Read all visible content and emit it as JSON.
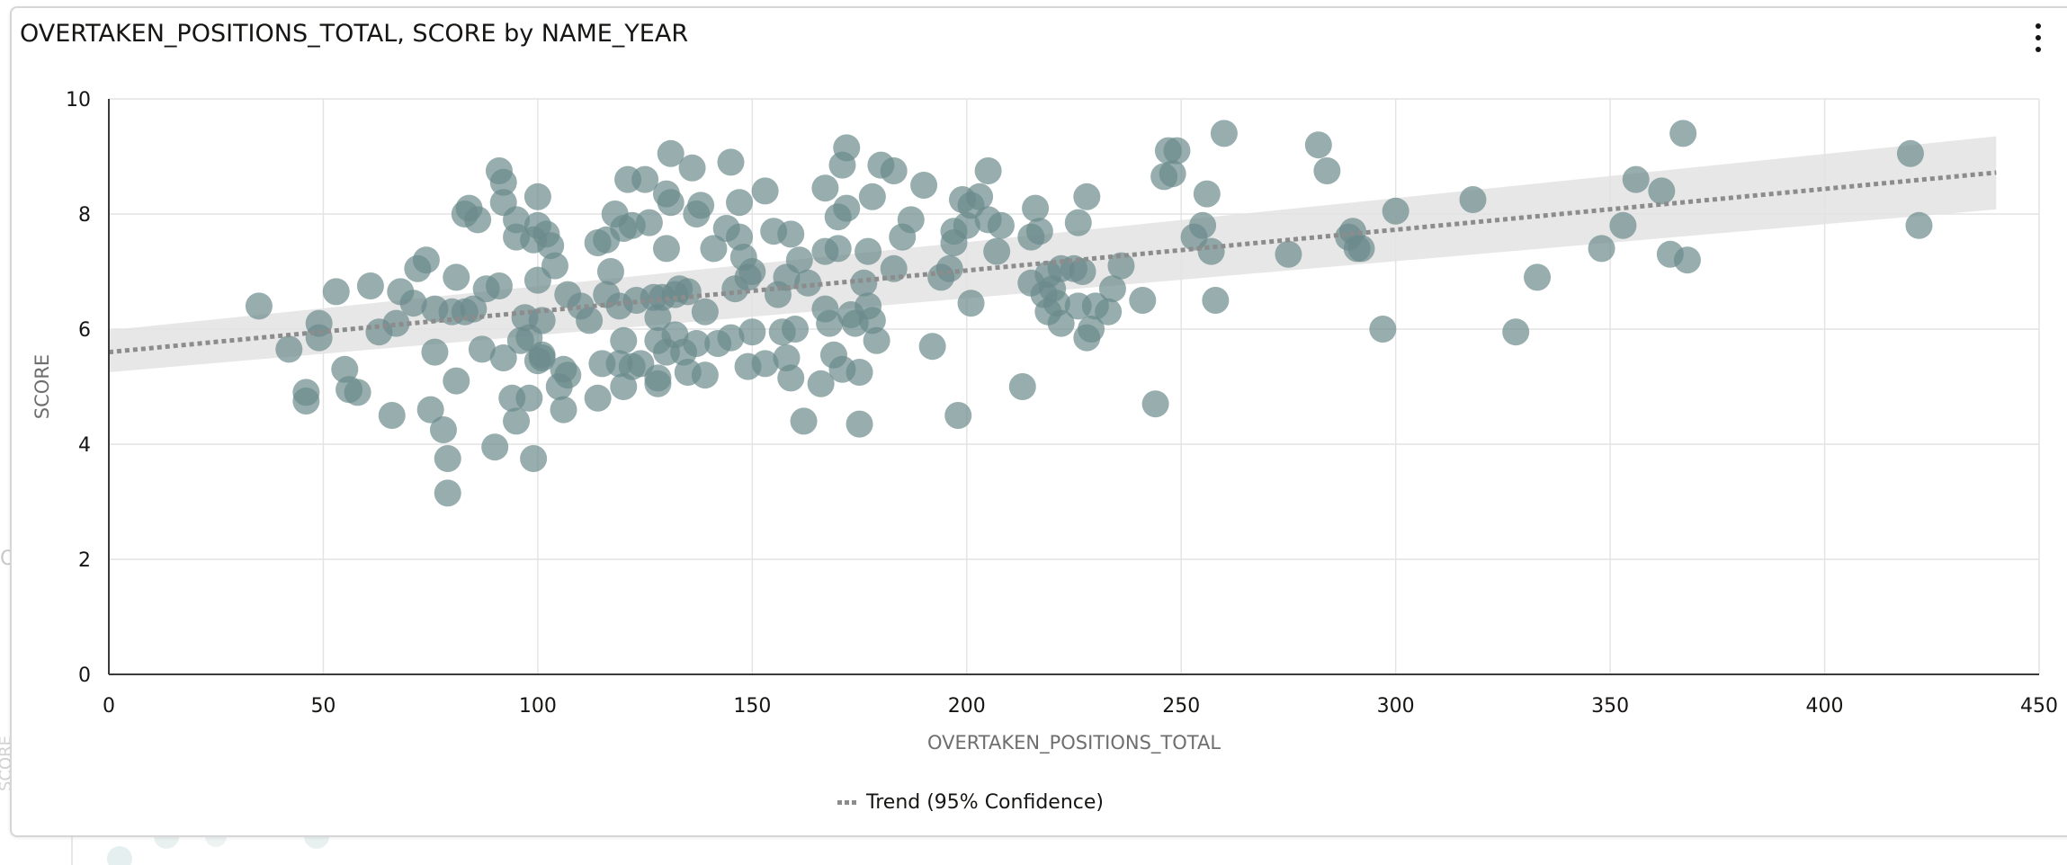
{
  "card": {
    "title": "OVERTAKEN_POSITIONS_TOTAL, SCORE by NAME_YEAR",
    "menu_icon": "more-vertical-icon"
  },
  "legend": {
    "trend_label": "Trend (95% Confidence)"
  },
  "colors": {
    "point": "#6b8a8c",
    "trend": "#8c8c8c",
    "band": "#e3e3e3",
    "grid": "#e4e4e4",
    "axis_label": "#6e6e6e"
  },
  "chart_data": {
    "type": "scatter",
    "title": "OVERTAKEN_POSITIONS_TOTAL, SCORE by NAME_YEAR",
    "xlabel": "OVERTAKEN_POSITIONS_TOTAL",
    "ylabel": "SCORE",
    "xlim": [
      0,
      450
    ],
    "ylim": [
      0,
      10
    ],
    "xticks": [
      0,
      50,
      100,
      150,
      200,
      250,
      300,
      350,
      400,
      450
    ],
    "yticks": [
      0,
      2,
      4,
      6,
      8,
      10
    ],
    "grid": true,
    "legend": "bottom-center",
    "trend": {
      "label": "Trend (95% Confidence)",
      "x": [
        0,
        440
      ],
      "y": [
        5.6,
        8.72
      ],
      "band_upper": [
        5.98,
        9.35
      ],
      "band_lower": [
        5.25,
        8.08
      ]
    },
    "points": [
      [
        35,
        6.4
      ],
      [
        42,
        5.65
      ],
      [
        46,
        4.9
      ],
      [
        46,
        4.75
      ],
      [
        49,
        6.1
      ],
      [
        49,
        5.85
      ],
      [
        53,
        6.65
      ],
      [
        55,
        5.3
      ],
      [
        56,
        4.95
      ],
      [
        58,
        4.9
      ],
      [
        61,
        6.75
      ],
      [
        63,
        5.95
      ],
      [
        66,
        4.5
      ],
      [
        67,
        6.1
      ],
      [
        68,
        6.65
      ],
      [
        71,
        6.45
      ],
      [
        72,
        7.05
      ],
      [
        74,
        7.2
      ],
      [
        75,
        4.6
      ],
      [
        76,
        6.35
      ],
      [
        76,
        5.6
      ],
      [
        78,
        4.25
      ],
      [
        79,
        3.75
      ],
      [
        79,
        3.15
      ],
      [
        80,
        6.3
      ],
      [
        81,
        5.1
      ],
      [
        81,
        6.9
      ],
      [
        83,
        6.3
      ],
      [
        83,
        8.0
      ],
      [
        84,
        8.1
      ],
      [
        85,
        6.35
      ],
      [
        86,
        7.9
      ],
      [
        87,
        5.65
      ],
      [
        88,
        6.7
      ],
      [
        90,
        3.95
      ],
      [
        91,
        6.75
      ],
      [
        91,
        8.75
      ],
      [
        92,
        5.5
      ],
      [
        92,
        8.2
      ],
      [
        92,
        8.55
      ],
      [
        94,
        4.8
      ],
      [
        95,
        7.9
      ],
      [
        95,
        7.6
      ],
      [
        95,
        4.4
      ],
      [
        96,
        5.8
      ],
      [
        97,
        6.2
      ],
      [
        98,
        5.85
      ],
      [
        98,
        4.8
      ],
      [
        99,
        3.75
      ],
      [
        99,
        7.55
      ],
      [
        100,
        6.85
      ],
      [
        100,
        5.45
      ],
      [
        100,
        7.8
      ],
      [
        100,
        8.3
      ],
      [
        101,
        6.15
      ],
      [
        101,
        5.55
      ],
      [
        101,
        5.5
      ],
      [
        102,
        7.65
      ],
      [
        103,
        7.45
      ],
      [
        104,
        7.1
      ],
      [
        105,
        5.0
      ],
      [
        106,
        4.6
      ],
      [
        106,
        5.3
      ],
      [
        107,
        6.6
      ],
      [
        107,
        5.2
      ],
      [
        110,
        6.4
      ],
      [
        112,
        6.15
      ],
      [
        114,
        7.5
      ],
      [
        114,
        4.8
      ],
      [
        115,
        5.4
      ],
      [
        116,
        7.55
      ],
      [
        116,
        6.6
      ],
      [
        117,
        7.0
      ],
      [
        118,
        8.0
      ],
      [
        119,
        5.4
      ],
      [
        119,
        6.4
      ],
      [
        120,
        5.0
      ],
      [
        120,
        5.8
      ],
      [
        120,
        7.75
      ],
      [
        121,
        8.6
      ],
      [
        122,
        5.35
      ],
      [
        122,
        7.8
      ],
      [
        123,
        6.5
      ],
      [
        124,
        5.4
      ],
      [
        125,
        8.6
      ],
      [
        126,
        7.85
      ],
      [
        127,
        6.55
      ],
      [
        128,
        6.2
      ],
      [
        128,
        5.8
      ],
      [
        128,
        5.15
      ],
      [
        128,
        5.05
      ],
      [
        129,
        6.55
      ],
      [
        130,
        8.35
      ],
      [
        130,
        7.4
      ],
      [
        130,
        5.6
      ],
      [
        131,
        9.05
      ],
      [
        131,
        8.2
      ],
      [
        132,
        6.6
      ],
      [
        132,
        5.9
      ],
      [
        133,
        6.7
      ],
      [
        134,
        5.6
      ],
      [
        135,
        5.25
      ],
      [
        135,
        6.65
      ],
      [
        136,
        8.8
      ],
      [
        137,
        5.75
      ],
      [
        137,
        8.0
      ],
      [
        138,
        8.15
      ],
      [
        139,
        6.3
      ],
      [
        139,
        5.2
      ],
      [
        141,
        7.4
      ],
      [
        142,
        5.75
      ],
      [
        144,
        7.75
      ],
      [
        145,
        8.9
      ],
      [
        145,
        5.85
      ],
      [
        146,
        6.7
      ],
      [
        147,
        7.6
      ],
      [
        147,
        8.2
      ],
      [
        148,
        7.25
      ],
      [
        149,
        6.9
      ],
      [
        149,
        5.35
      ],
      [
        150,
        7.0
      ],
      [
        150,
        5.95
      ],
      [
        153,
        5.4
      ],
      [
        153,
        8.4
      ],
      [
        155,
        7.7
      ],
      [
        156,
        6.6
      ],
      [
        157,
        5.95
      ],
      [
        158,
        6.9
      ],
      [
        158,
        5.5
      ],
      [
        159,
        7.65
      ],
      [
        159,
        5.15
      ],
      [
        160,
        6.0
      ],
      [
        161,
        7.2
      ],
      [
        162,
        4.4
      ],
      [
        163,
        6.8
      ],
      [
        166,
        5.05
      ],
      [
        167,
        8.45
      ],
      [
        167,
        7.35
      ],
      [
        167,
        6.35
      ],
      [
        168,
        6.1
      ],
      [
        169,
        5.55
      ],
      [
        170,
        7.95
      ],
      [
        170,
        7.4
      ],
      [
        171,
        8.85
      ],
      [
        171,
        5.3
      ],
      [
        172,
        9.15
      ],
      [
        172,
        8.1
      ],
      [
        173,
        6.25
      ],
      [
        174,
        6.1
      ],
      [
        175,
        5.25
      ],
      [
        175,
        4.35
      ],
      [
        176,
        6.8
      ],
      [
        177,
        7.35
      ],
      [
        177,
        6.4
      ],
      [
        178,
        8.3
      ],
      [
        178,
        6.15
      ],
      [
        179,
        5.8
      ],
      [
        180,
        8.85
      ],
      [
        183,
        8.75
      ],
      [
        183,
        7.05
      ],
      [
        185,
        7.6
      ],
      [
        187,
        7.9
      ],
      [
        190,
        8.5
      ],
      [
        192,
        5.7
      ],
      [
        194,
        6.9
      ],
      [
        196,
        7.05
      ],
      [
        197,
        7.7
      ],
      [
        197,
        7.5
      ],
      [
        198,
        4.5
      ],
      [
        199,
        8.25
      ],
      [
        200,
        7.8
      ],
      [
        201,
        8.15
      ],
      [
        201,
        6.45
      ],
      [
        203,
        8.3
      ],
      [
        205,
        8.75
      ],
      [
        205,
        7.9
      ],
      [
        207,
        7.35
      ],
      [
        208,
        7.8
      ],
      [
        213,
        5.0
      ],
      [
        215,
        6.8
      ],
      [
        215,
        7.6
      ],
      [
        216,
        8.1
      ],
      [
        217,
        7.7
      ],
      [
        218,
        6.6
      ],
      [
        219,
        6.95
      ],
      [
        219,
        6.3
      ],
      [
        220,
        6.7
      ],
      [
        221,
        6.45
      ],
      [
        222,
        7.05
      ],
      [
        222,
        6.1
      ],
      [
        225,
        7.05
      ],
      [
        226,
        6.4
      ],
      [
        226,
        7.85
      ],
      [
        227,
        7.0
      ],
      [
        228,
        5.85
      ],
      [
        228,
        8.3
      ],
      [
        229,
        6.0
      ],
      [
        230,
        6.4
      ],
      [
        233,
        6.3
      ],
      [
        234,
        6.7
      ],
      [
        236,
        7.1
      ],
      [
        241,
        6.5
      ],
      [
        244,
        4.7
      ],
      [
        246,
        8.65
      ],
      [
        247,
        9.1
      ],
      [
        248,
        8.7
      ],
      [
        249,
        9.1
      ],
      [
        253,
        7.6
      ],
      [
        255,
        7.8
      ],
      [
        256,
        8.35
      ],
      [
        257,
        7.35
      ],
      [
        258,
        6.5
      ],
      [
        260,
        9.4
      ],
      [
        275,
        7.3
      ],
      [
        282,
        9.2
      ],
      [
        284,
        8.75
      ],
      [
        289,
        7.6
      ],
      [
        290,
        7.7
      ],
      [
        291,
        7.4
      ],
      [
        292,
        7.4
      ],
      [
        297,
        6.0
      ],
      [
        300,
        8.05
      ],
      [
        318,
        8.25
      ],
      [
        328,
        5.95
      ],
      [
        333,
        6.9
      ],
      [
        348,
        7.4
      ],
      [
        353,
        7.8
      ],
      [
        356,
        8.6
      ],
      [
        362,
        8.4
      ],
      [
        364,
        7.3
      ],
      [
        367,
        9.4
      ],
      [
        368,
        7.2
      ],
      [
        420,
        9.05
      ],
      [
        422,
        7.8
      ]
    ]
  }
}
